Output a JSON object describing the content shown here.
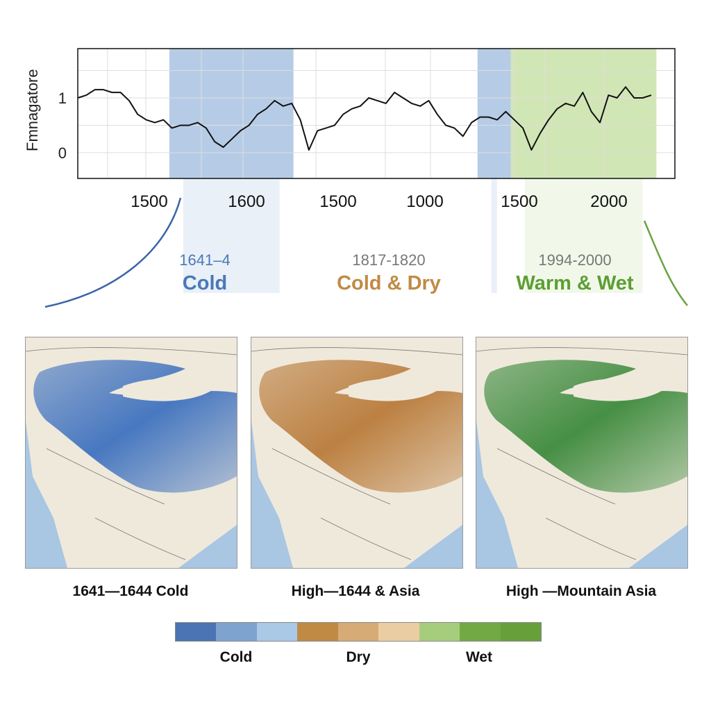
{
  "chart_data": {
    "type": "line",
    "ylabel": "Fmnagatore",
    "y_ticks": [
      "1",
      "0"
    ],
    "y_tick_values": [
      1,
      0
    ],
    "ylim": [
      -0.47,
      1.9
    ],
    "x_tick_labels": [
      "1500",
      "1600",
      "1500",
      "1000",
      "1500",
      "2000"
    ],
    "grid": true,
    "series": [
      {
        "color": "#111111",
        "values": [
          1.0,
          1.05,
          1.15,
          1.15,
          1.1,
          1.1,
          0.95,
          0.7,
          0.6,
          0.55,
          0.6,
          0.45,
          0.5,
          0.5,
          0.55,
          0.45,
          0.2,
          0.1,
          0.25,
          0.4,
          0.5,
          0.7,
          0.8,
          0.95,
          0.85,
          0.9,
          0.6,
          0.05,
          0.4,
          0.45,
          0.5,
          0.7,
          0.8,
          0.85,
          1.0,
          0.95,
          0.9,
          1.1,
          1.0,
          0.9,
          0.85,
          0.95,
          0.7,
          0.5,
          0.45,
          0.3,
          0.55,
          0.65,
          0.65,
          0.6,
          0.75,
          0.6,
          0.45,
          0.05,
          0.35,
          0.6,
          0.8,
          0.9,
          0.85,
          1.1,
          0.75,
          0.55,
          1.05,
          1.0,
          1.2,
          1.0,
          1.0,
          1.05
        ]
      }
    ],
    "bands": [
      {
        "color": "#a9c3e2",
        "start_index": 10.7,
        "end_index": 25.2
      },
      {
        "color": "#a9c3e2",
        "start_index": 46.7,
        "end_index": 50.6
      },
      {
        "color": "#c9e2a8",
        "start_index": 50.6,
        "end_index": 67.6
      }
    ]
  },
  "periods": [
    {
      "years": "1641–4",
      "label": "Cold",
      "year_color": "#4a78b8",
      "color": "#4a78b8"
    },
    {
      "years": "1817-1820",
      "label": "Cold & Dry",
      "year_color": "#777777",
      "color": "#c08a45"
    },
    {
      "years": "1994-2000",
      "label": "Warm & Wet",
      "year_color": "#777777",
      "color": "#5c9e35"
    }
  ],
  "maps": [
    {
      "caption": "1641—1644 Cold",
      "color": "#3f72bf"
    },
    {
      "caption": "High—1644 & Asia",
      "color": "#b97b3a"
    },
    {
      "caption": "High —Mountain Asia",
      "color": "#3d8a3d"
    }
  ],
  "colorbar": {
    "colors": [
      "#4a74b2",
      "#7fa3cf",
      "#a9c9e6",
      "#c08a45",
      "#d6ab76",
      "#ebcda3",
      "#a6cd7c",
      "#72a944",
      "#67a03a"
    ],
    "labels": [
      "Cold",
      "Dry",
      "Wet"
    ]
  }
}
